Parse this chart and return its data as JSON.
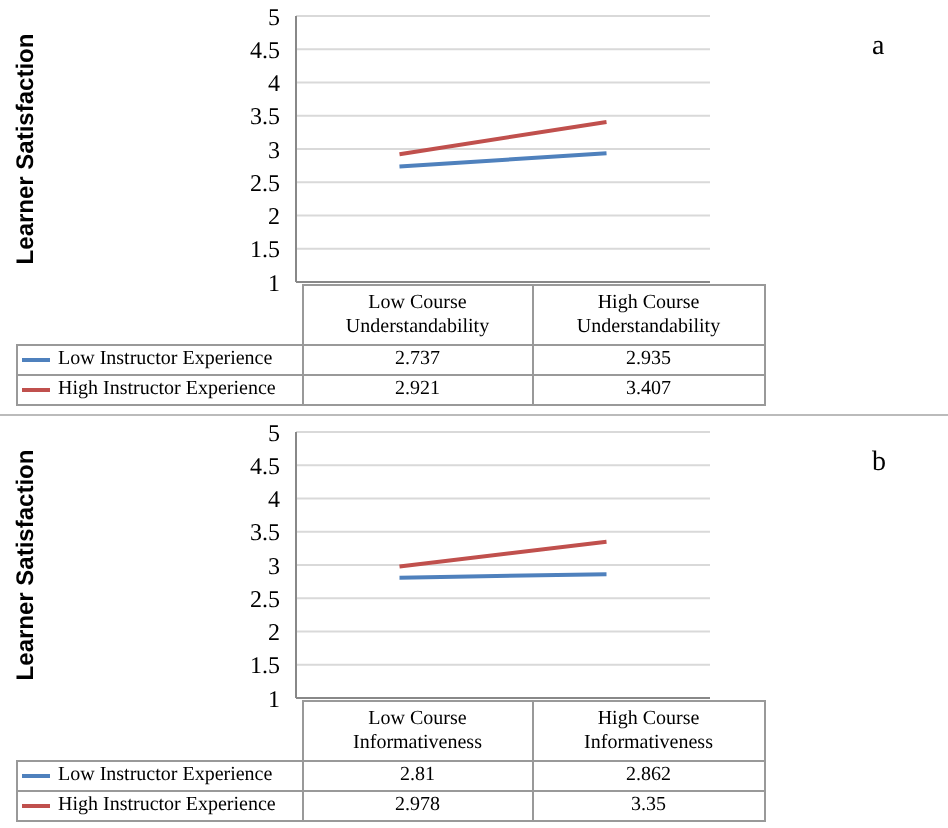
{
  "chart_data": [
    {
      "type": "line",
      "categories": [
        "Low Course Understandability",
        "High Course Understandability"
      ],
      "ylabel": "Learner Satisfaction",
      "ylim": [
        1,
        5
      ],
      "yticks": [
        1,
        1.5,
        2,
        2.5,
        3,
        3.5,
        4,
        4.5,
        5
      ],
      "grid": "y",
      "legend": "bottom left",
      "marker": "none",
      "data_labels": true,
      "annotations": [
        "a"
      ],
      "series": [
        {
          "name": "Low Instructor Experience",
          "color": "#4f81bd",
          "values": [
            2.737,
            2.935
          ]
        },
        {
          "name": "High Instructor Experience",
          "color": "#c0504d",
          "values": [
            2.921,
            3.407
          ]
        }
      ]
    },
    {
      "type": "line",
      "categories": [
        "Low Course Informativeness",
        "High Course Informativeness"
      ],
      "ylabel": "Learner Satisfaction",
      "ylim": [
        1,
        5
      ],
      "yticks": [
        1,
        1.5,
        2,
        2.5,
        3,
        3.5,
        4,
        4.5,
        5
      ],
      "grid": "y",
      "legend": "bottom left",
      "marker": "none",
      "data_labels": true,
      "annotations": [
        "b"
      ],
      "series": [
        {
          "name": "Low Instructor Experience",
          "color": "#4f81bd",
          "values": [
            2.81,
            2.862
          ]
        },
        {
          "name": "High Instructor Experience",
          "color": "#c0504d",
          "values": [
            2.978,
            3.35
          ]
        }
      ]
    }
  ]
}
